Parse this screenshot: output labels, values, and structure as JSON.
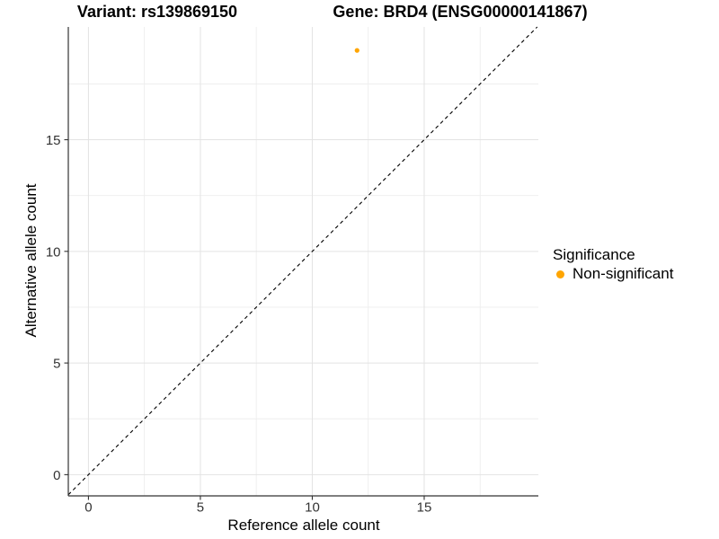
{
  "chart_data": {
    "type": "scatter",
    "titles": {
      "left": "Variant: rs139869150",
      "right": "Gene: BRD4 (ENSG00000141867)"
    },
    "xlabel": "Reference allele count",
    "ylabel": "Alternative allele count",
    "xlim": [
      -0.9,
      20.1
    ],
    "ylim": [
      -0.95,
      20.05
    ],
    "x_ticks": [
      0,
      5,
      10,
      15
    ],
    "y_ticks": [
      0,
      5,
      10,
      15
    ],
    "x_minor_ticks": [
      2.5,
      7.5,
      12.5,
      17.5
    ],
    "y_minor_ticks": [
      2.5,
      7.5,
      12.5,
      17.5
    ],
    "grid": "major+minor",
    "series": [
      {
        "name": "Non-significant",
        "color": "#FFA500",
        "points": [
          {
            "x": 12,
            "y": 19
          }
        ]
      }
    ],
    "reference_line": {
      "equation": "y = x",
      "style": "dashed",
      "color": "#000000"
    },
    "legend": {
      "title": "Significance",
      "position": "right",
      "items": [
        {
          "label": "Non-significant",
          "color": "#FFA500"
        }
      ]
    },
    "colors": {
      "background": "#FFFFFF",
      "major_grid": "#E3E3E3",
      "minor_grid": "#EDEDED",
      "axis_line": "#333333",
      "tick_mark": "#333333",
      "tick_label": "#333333"
    }
  }
}
